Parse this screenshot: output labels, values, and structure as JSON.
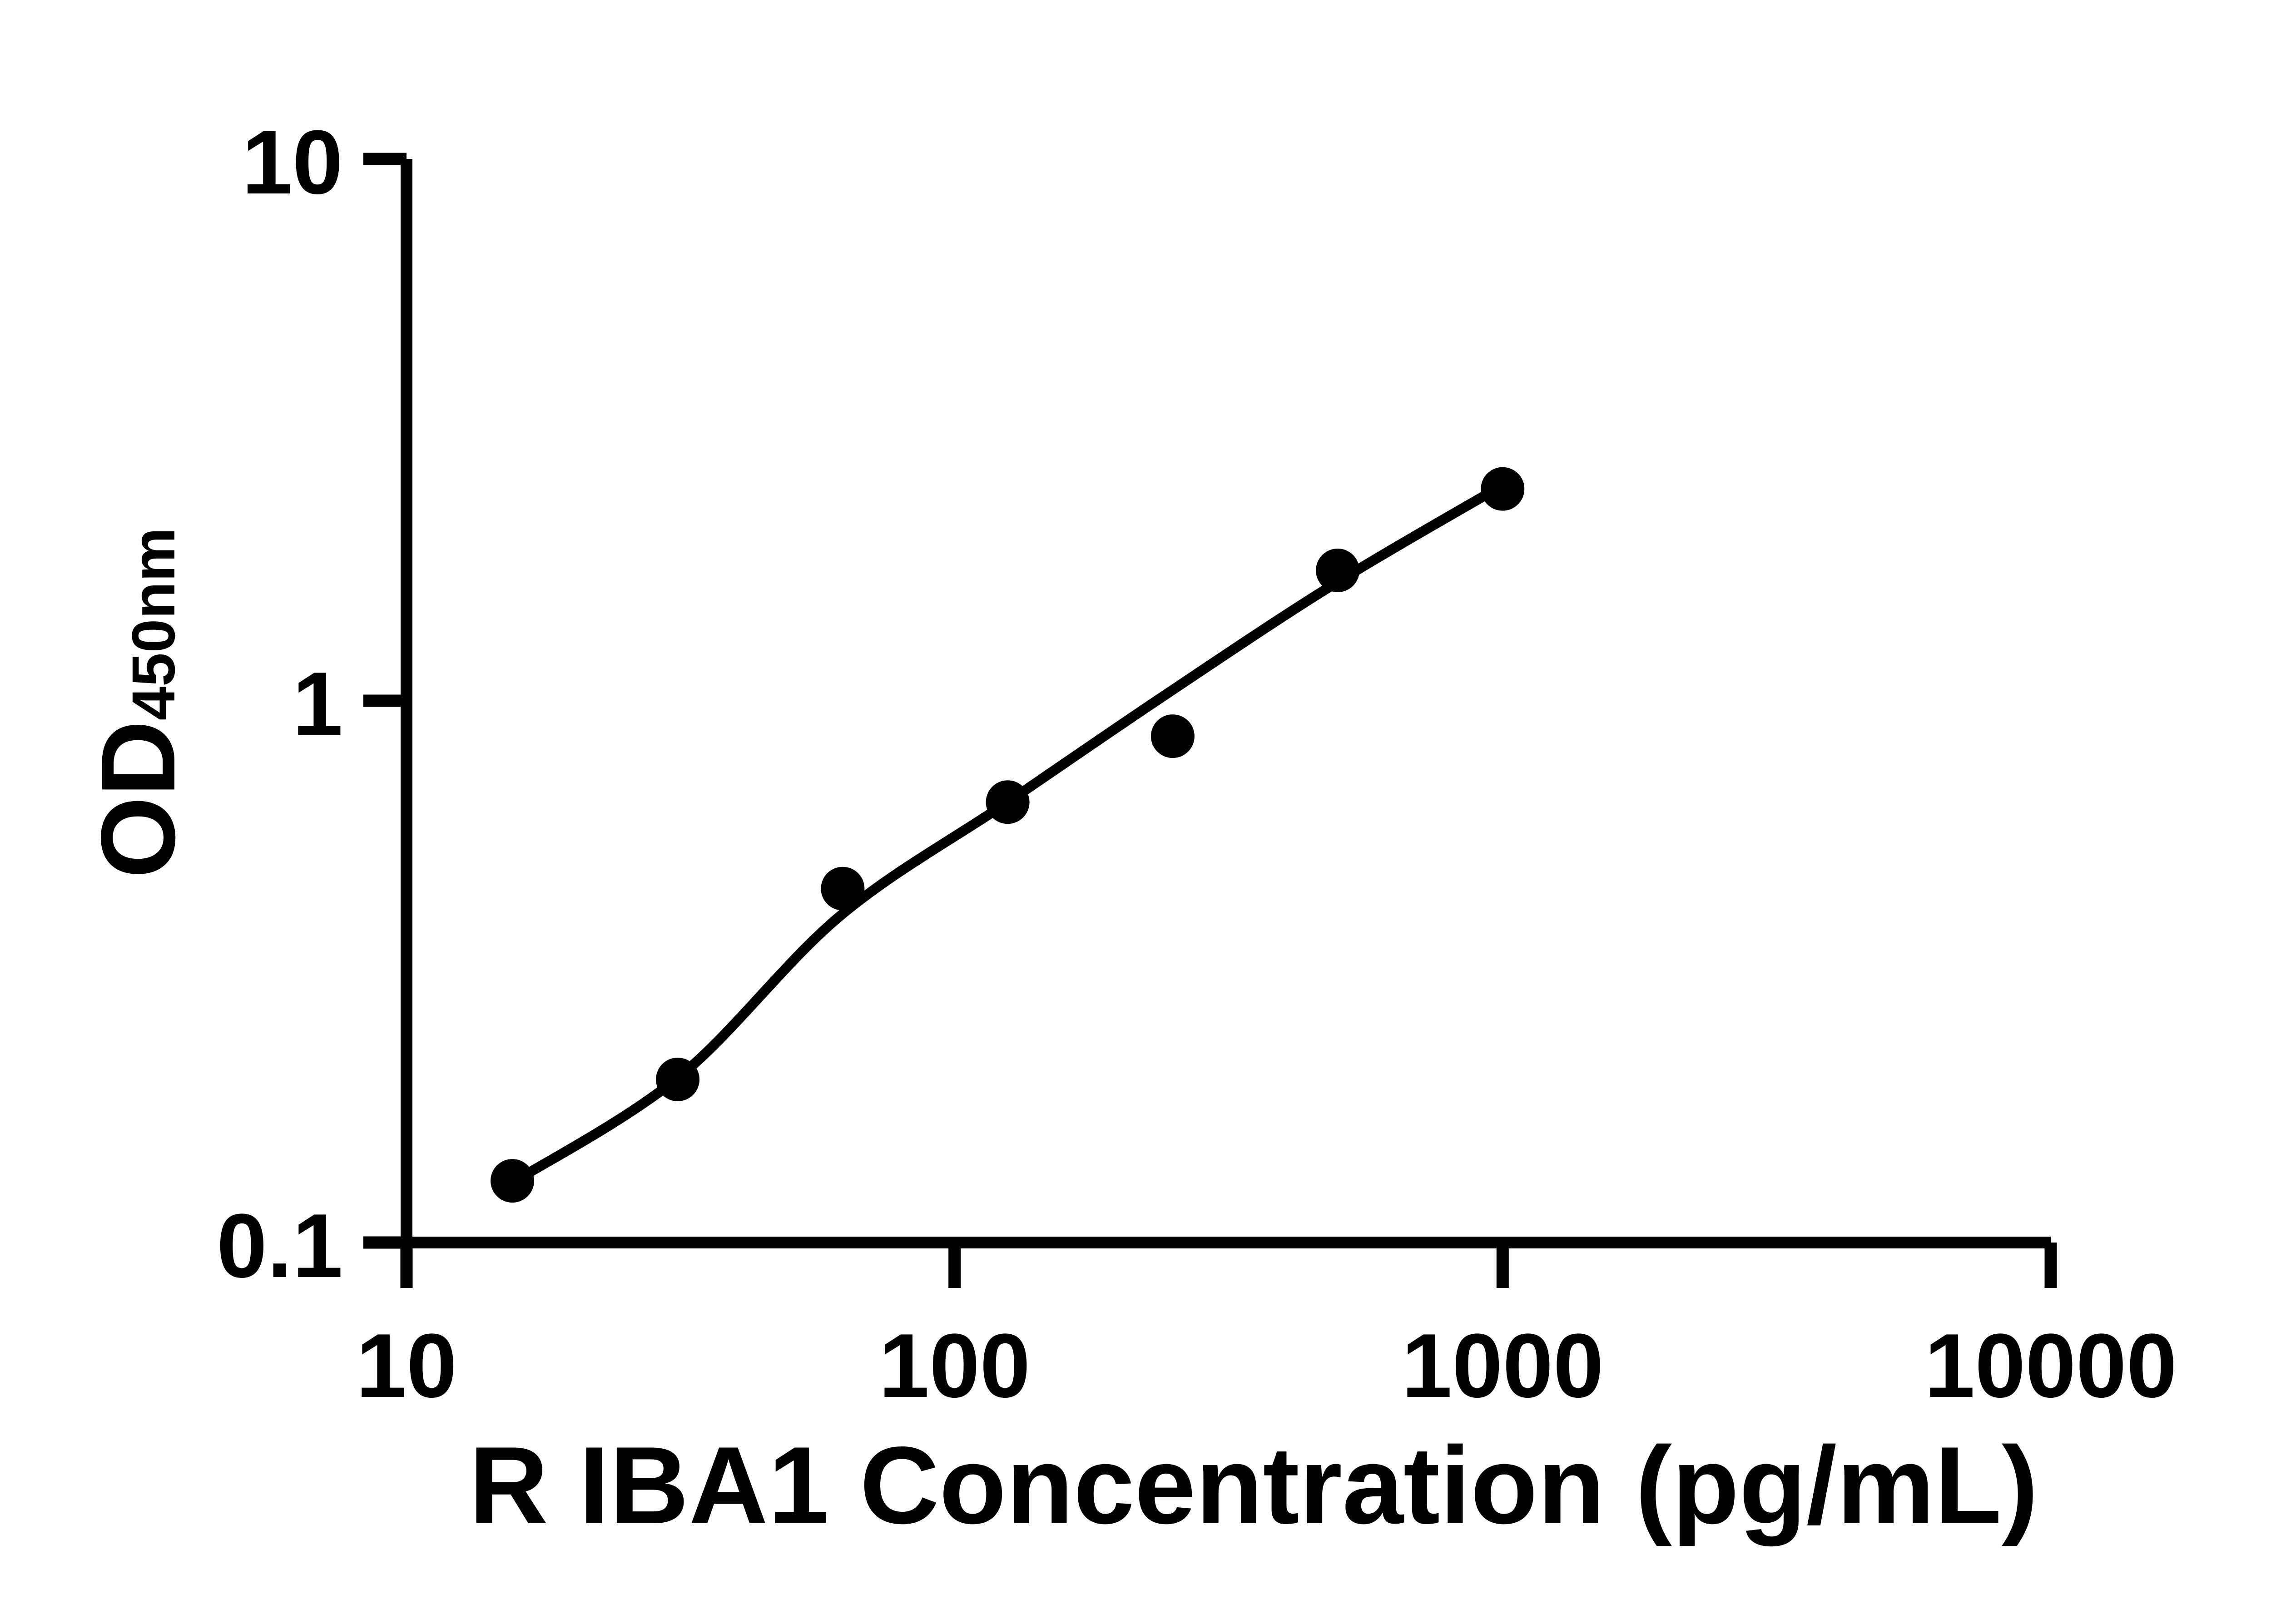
{
  "figure": {
    "background_color": "#ffffff",
    "ink_color": "#000000"
  },
  "chart_data": {
    "type": "scatter",
    "title": "",
    "xlabel": "R IBA1 Concentration (pg/mL)",
    "ylabel": "OD",
    "ylabel_subscript": "450nm",
    "x_scale": "log",
    "y_scale": "log",
    "xlim": [
      10,
      10000
    ],
    "ylim": [
      0.1,
      10
    ],
    "grid": false,
    "legend": null,
    "x_ticks": [
      {
        "value": 10,
        "label": "10"
      },
      {
        "value": 100,
        "label": "100"
      },
      {
        "value": 1000,
        "label": "1000"
      },
      {
        "value": 10000,
        "label": "10000"
      }
    ],
    "y_ticks": [
      {
        "value": 10,
        "label": "10"
      },
      {
        "value": 1,
        "label": "1"
      },
      {
        "value": 0.1,
        "label": "0.1"
      }
    ],
    "series": [
      {
        "name": "standard points",
        "kind": "scatter",
        "marker": "filled-circle",
        "color": "#000000",
        "points": [
          [
            15.6,
            0.13
          ],
          [
            31.25,
            0.2
          ],
          [
            62.5,
            0.45
          ],
          [
            125,
            0.65
          ],
          [
            250,
            0.86
          ],
          [
            500,
            1.74
          ],
          [
            1000,
            2.46
          ]
        ]
      },
      {
        "name": "fitted standard curve",
        "kind": "line",
        "color": "#000000",
        "points": [
          [
            15.6,
            0.129
          ],
          [
            31.4,
            0.202
          ],
          [
            61.7,
            0.4
          ],
          [
            125,
            0.65
          ],
          [
            244,
            1.03
          ],
          [
            487,
            1.63
          ],
          [
            973,
            2.46
          ]
        ]
      }
    ]
  }
}
